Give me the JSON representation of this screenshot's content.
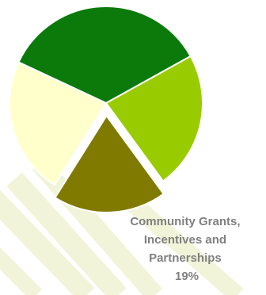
{
  "chart_data": {
    "type": "pie",
    "title": "",
    "slices": [
      {
        "name": "",
        "value": 35,
        "color": "#0b7a0b"
      },
      {
        "name": "",
        "value": 23,
        "color": "#99cc00"
      },
      {
        "name": "Community Grants, Incentives and Partnerships",
        "value": 19,
        "color": "#807a00",
        "exploded": true
      },
      {
        "name": "",
        "value": 23,
        "color": "#ffffcc"
      }
    ],
    "data_labels": [
      {
        "slice": 2,
        "lines": [
          "Community Grants,",
          "Incentives and",
          "Partnerships",
          "19%"
        ]
      }
    ],
    "legend": "none",
    "background_decoration": "light diagonal stripes",
    "colors": {
      "stripe": "#f1f4d8",
      "label_text": "#808080"
    }
  }
}
